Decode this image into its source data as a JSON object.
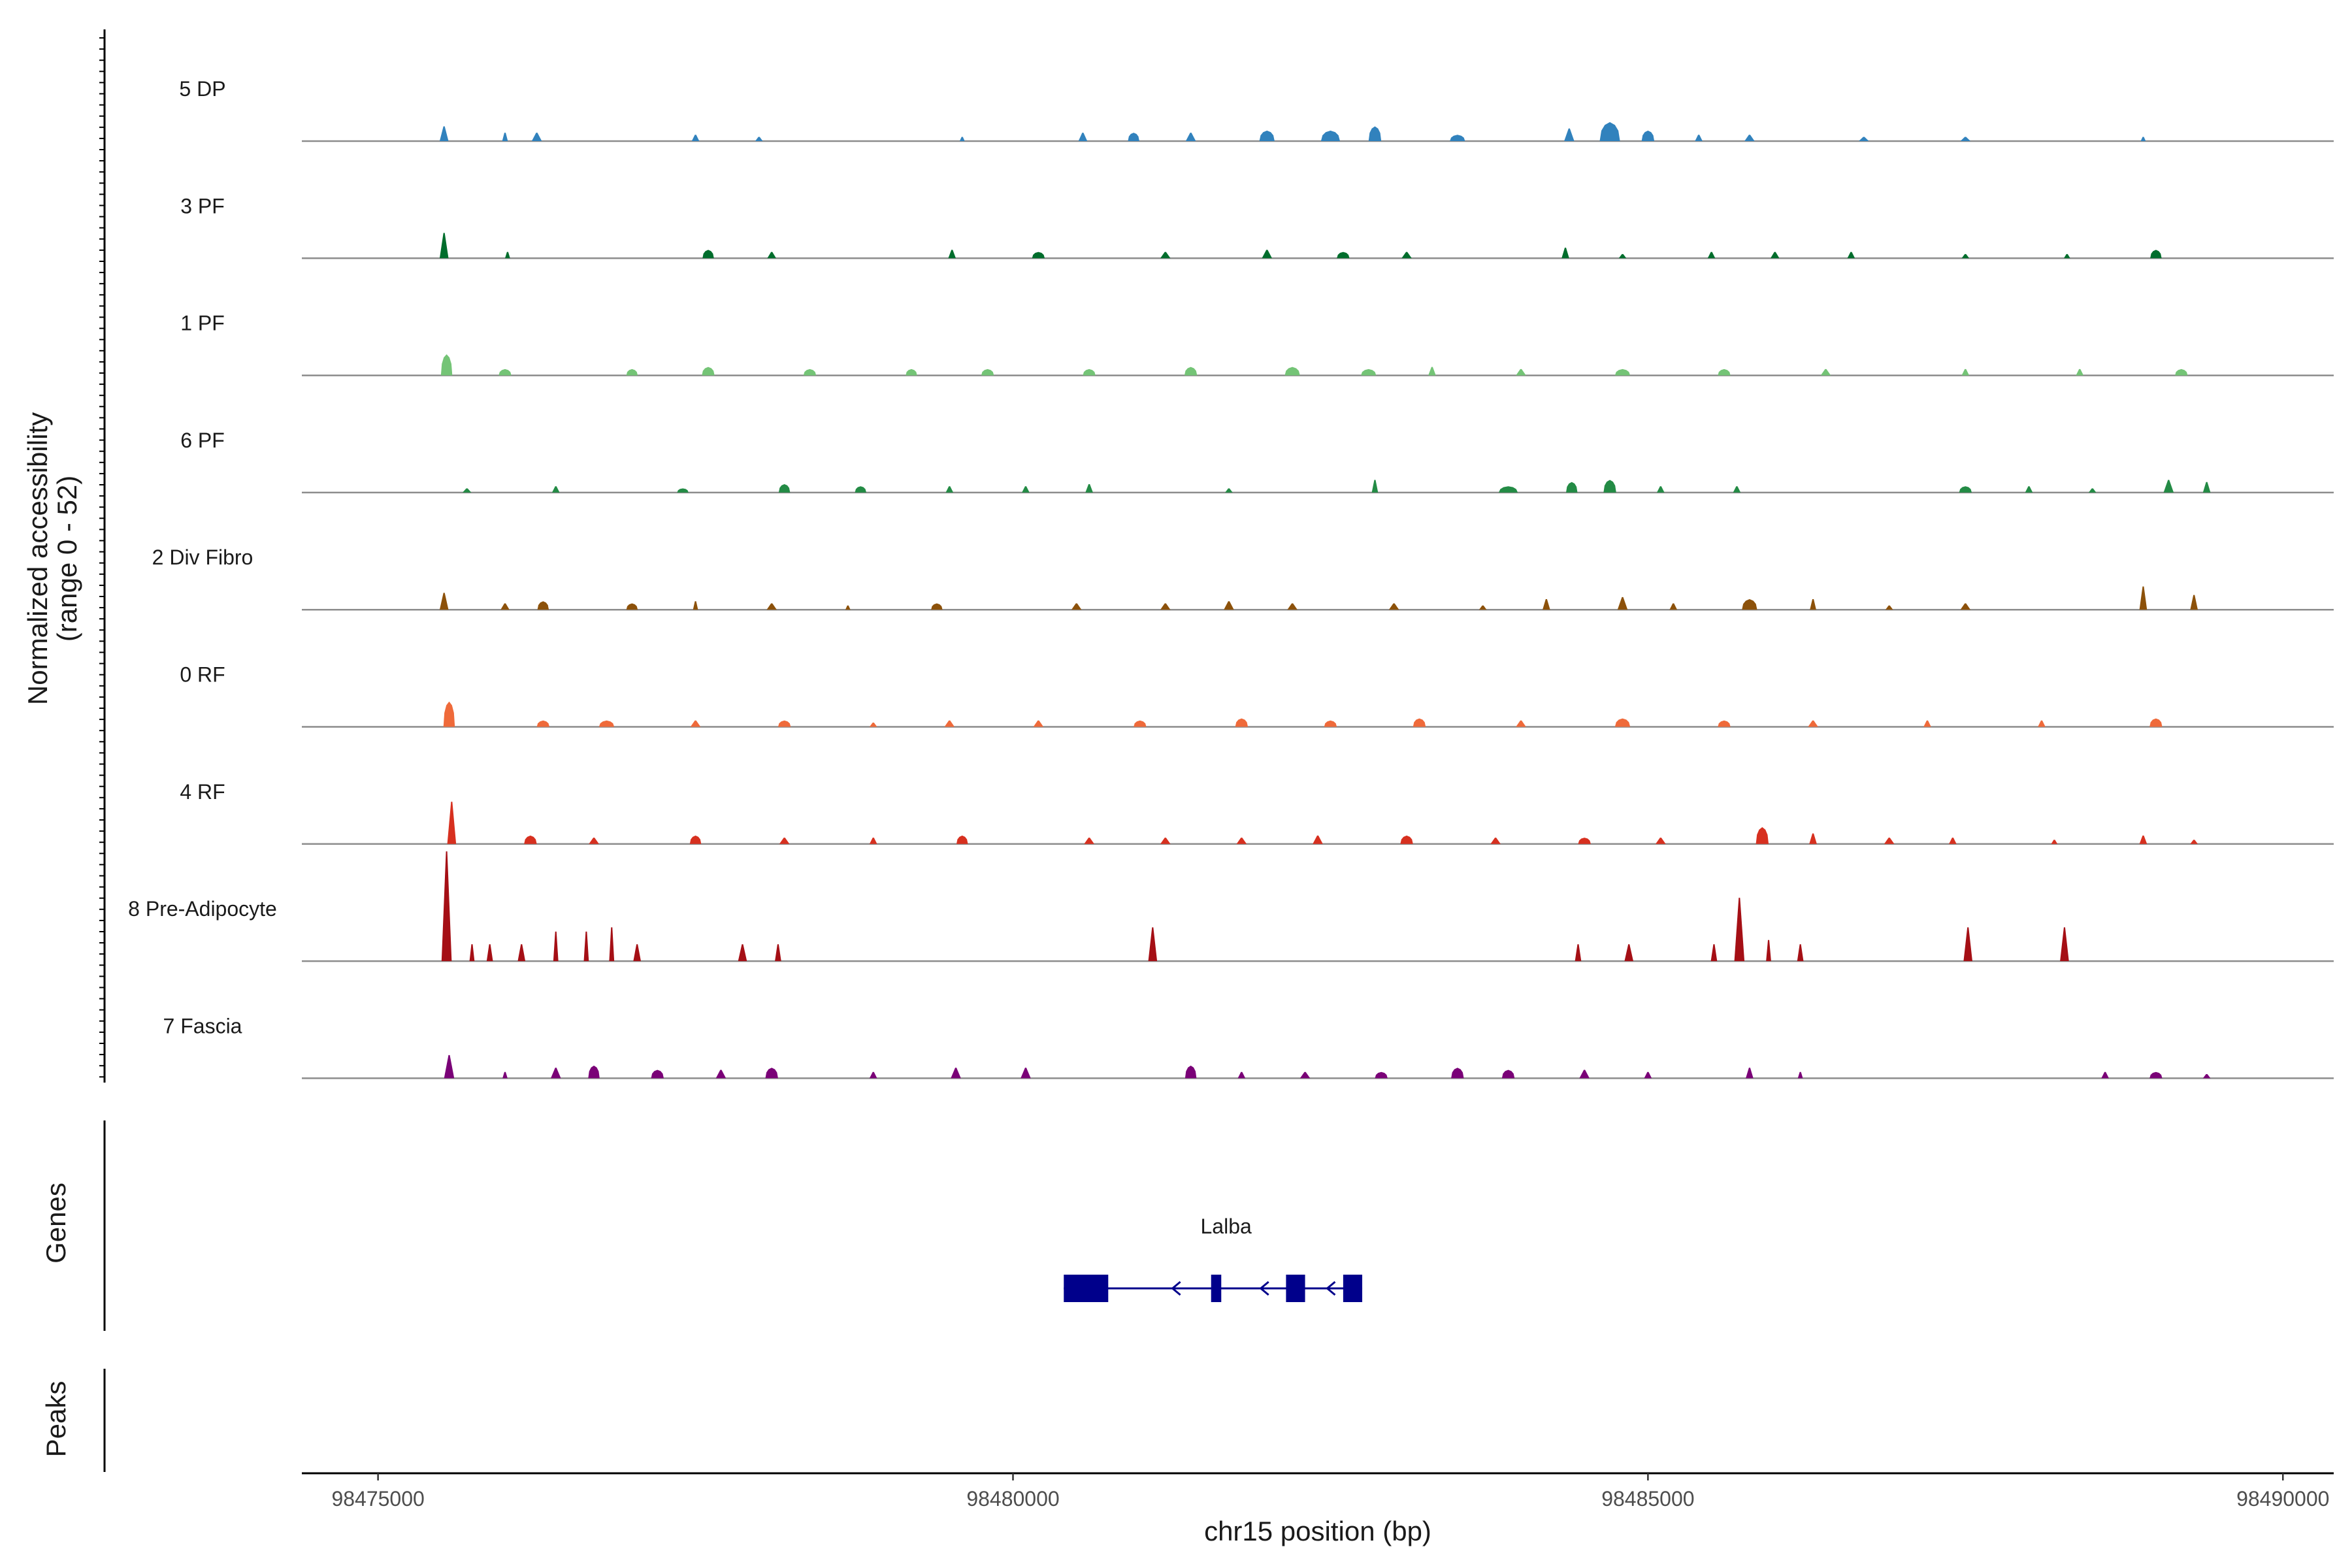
{
  "chart_data": {
    "type": "area",
    "title": "",
    "ylabel": "Normalized accessibility",
    "ylabel_range": "(range 0 - 52)",
    "ylim": [
      0,
      52
    ],
    "xlabel": "chr15 position (bp)",
    "xlim": [
      98474400,
      98490400
    ],
    "x_ticks": [
      98475000,
      98480000,
      98485000,
      98490000
    ],
    "x_tick_labels": [
      "98475000",
      "98480000",
      "98485000",
      "98490000"
    ],
    "side_labels": {
      "genes": "Genes",
      "peaks": "Peaks"
    },
    "tracks": [
      {
        "name": "5 DP",
        "color": "#3182bd",
        "peaks": [
          [
            98475520,
            70,
            7
          ],
          [
            98476000,
            45,
            4
          ],
          [
            98476250,
            80,
            4
          ],
          [
            98477500,
            60,
            3
          ],
          [
            98478000,
            60,
            2
          ],
          [
            98479600,
            40,
            2
          ],
          [
            98480550,
            70,
            4
          ],
          [
            98480950,
            90,
            4
          ],
          [
            98481400,
            80,
            4
          ],
          [
            98482000,
            120,
            5
          ],
          [
            98482500,
            150,
            5
          ],
          [
            98482850,
            100,
            7
          ],
          [
            98483500,
            120,
            3
          ],
          [
            98484380,
            80,
            6
          ],
          [
            98484700,
            160,
            9
          ],
          [
            98485000,
            100,
            5
          ],
          [
            98485400,
            60,
            3
          ],
          [
            98485800,
            80,
            3
          ],
          [
            98486700,
            80,
            2
          ],
          [
            98487500,
            80,
            2
          ],
          [
            98488900,
            40,
            2
          ]
        ]
      },
      {
        "name": "3 PF",
        "color": "#006d2c",
        "peaks": [
          [
            98475520,
            70,
            12
          ],
          [
            98476020,
            40,
            3
          ],
          [
            98477600,
            90,
            4
          ],
          [
            98478100,
            70,
            3
          ],
          [
            98479520,
            60,
            4
          ],
          [
            98480200,
            100,
            3
          ],
          [
            98481200,
            80,
            3
          ],
          [
            98482000,
            80,
            4
          ],
          [
            98482600,
            100,
            3
          ],
          [
            98483100,
            80,
            3
          ],
          [
            98484350,
            60,
            5
          ],
          [
            98484800,
            60,
            2
          ],
          [
            98485500,
            60,
            3
          ],
          [
            98486000,
            70,
            3
          ],
          [
            98486600,
            60,
            3
          ],
          [
            98487500,
            60,
            2
          ],
          [
            98488300,
            50,
            2
          ],
          [
            98489000,
            90,
            4
          ]
        ]
      },
      {
        "name": "1 PF",
        "color": "#74c476",
        "peaks": [
          [
            98475540,
            90,
            10
          ],
          [
            98476000,
            100,
            3
          ],
          [
            98477000,
            90,
            3
          ],
          [
            98477600,
            100,
            4
          ],
          [
            98478400,
            100,
            3
          ],
          [
            98479200,
            90,
            3
          ],
          [
            98479800,
            100,
            3
          ],
          [
            98480600,
            100,
            3
          ],
          [
            98481400,
            100,
            4
          ],
          [
            98482200,
            120,
            4
          ],
          [
            98482800,
            120,
            3
          ],
          [
            98483300,
            60,
            4
          ],
          [
            98484000,
            80,
            3
          ],
          [
            98484800,
            120,
            3
          ],
          [
            98485600,
            100,
            3
          ],
          [
            98486400,
            80,
            3
          ],
          [
            98487500,
            60,
            3
          ],
          [
            98488400,
            60,
            3
          ],
          [
            98489200,
            100,
            3
          ]
        ]
      },
      {
        "name": "6 PF",
        "color": "#238b45",
        "peaks": [
          [
            98475700,
            70,
            2
          ],
          [
            98476400,
            60,
            3
          ],
          [
            98477400,
            90,
            2
          ],
          [
            98478200,
            90,
            4
          ],
          [
            98478800,
            90,
            3
          ],
          [
            98479500,
            60,
            3
          ],
          [
            98480100,
            60,
            3
          ],
          [
            98480600,
            60,
            4
          ],
          [
            98481700,
            60,
            2
          ],
          [
            98482850,
            50,
            6
          ],
          [
            98483900,
            150,
            3
          ],
          [
            98484400,
            90,
            5
          ],
          [
            98484700,
            100,
            6
          ],
          [
            98485100,
            60,
            3
          ],
          [
            98485700,
            60,
            3
          ],
          [
            98487500,
            100,
            3
          ],
          [
            98488000,
            60,
            3
          ],
          [
            98488500,
            60,
            2
          ],
          [
            98489100,
            80,
            6
          ],
          [
            98489400,
            60,
            5
          ]
        ]
      },
      {
        "name": "2 Div Fibro",
        "color": "#8c510a",
        "peaks": [
          [
            98475520,
            70,
            8
          ],
          [
            98476000,
            70,
            3
          ],
          [
            98476300,
            90,
            4
          ],
          [
            98477000,
            90,
            3
          ],
          [
            98477500,
            40,
            4
          ],
          [
            98478100,
            80,
            3
          ],
          [
            98478700,
            40,
            2
          ],
          [
            98479400,
            90,
            3
          ],
          [
            98480500,
            80,
            3
          ],
          [
            98481200,
            80,
            3
          ],
          [
            98481700,
            80,
            4
          ],
          [
            98482200,
            80,
            3
          ],
          [
            98483000,
            80,
            3
          ],
          [
            98483700,
            60,
            2
          ],
          [
            98484200,
            60,
            5
          ],
          [
            98484800,
            80,
            6
          ],
          [
            98485200,
            60,
            3
          ],
          [
            98485800,
            120,
            5
          ],
          [
            98486300,
            50,
            5
          ],
          [
            98486900,
            60,
            2
          ],
          [
            98487500,
            80,
            3
          ],
          [
            98488900,
            60,
            11
          ],
          [
            98489300,
            60,
            7
          ]
        ]
      },
      {
        "name": "0 RF",
        "color": "#ef6a3a",
        "peaks": [
          [
            98475560,
            90,
            12
          ],
          [
            98476300,
            100,
            3
          ],
          [
            98476800,
            120,
            3
          ],
          [
            98477500,
            80,
            3
          ],
          [
            98478200,
            100,
            3
          ],
          [
            98478900,
            60,
            2
          ],
          [
            98479500,
            80,
            3
          ],
          [
            98480200,
            80,
            3
          ],
          [
            98481000,
            100,
            3
          ],
          [
            98481800,
            100,
            4
          ],
          [
            98482500,
            100,
            3
          ],
          [
            98483200,
            100,
            4
          ],
          [
            98484000,
            80,
            3
          ],
          [
            98484800,
            120,
            4
          ],
          [
            98485600,
            100,
            3
          ],
          [
            98486300,
            80,
            3
          ],
          [
            98487200,
            60,
            3
          ],
          [
            98488100,
            60,
            3
          ],
          [
            98489000,
            100,
            4
          ]
        ]
      },
      {
        "name": "4 RF",
        "color": "#d7301f",
        "peaks": [
          [
            98475580,
            70,
            20
          ],
          [
            98476200,
            100,
            4
          ],
          [
            98476700,
            80,
            3
          ],
          [
            98477500,
            90,
            4
          ],
          [
            98478200,
            80,
            3
          ],
          [
            98478900,
            60,
            3
          ],
          [
            98479600,
            90,
            4
          ],
          [
            98480600,
            80,
            3
          ],
          [
            98481200,
            80,
            3
          ],
          [
            98481800,
            80,
            3
          ],
          [
            98482400,
            80,
            4
          ],
          [
            98483100,
            100,
            4
          ],
          [
            98483800,
            80,
            3
          ],
          [
            98484500,
            100,
            3
          ],
          [
            98485100,
            80,
            3
          ],
          [
            98485900,
            100,
            8
          ],
          [
            98486300,
            60,
            5
          ],
          [
            98486900,
            80,
            3
          ],
          [
            98487400,
            60,
            3
          ],
          [
            98488200,
            50,
            2
          ],
          [
            98488900,
            60,
            4
          ],
          [
            98489300,
            60,
            2
          ]
        ]
      },
      {
        "name": "8 Pre-Adipocyte",
        "color": "#a50f15",
        "peaks": [
          [
            98475540,
            80,
            52
          ],
          [
            98475740,
            40,
            8
          ],
          [
            98475880,
            50,
            8
          ],
          [
            98476130,
            60,
            8
          ],
          [
            98476400,
            40,
            14
          ],
          [
            98476640,
            40,
            14
          ],
          [
            98476840,
            40,
            16
          ],
          [
            98477040,
            60,
            8
          ],
          [
            98477870,
            70,
            8
          ],
          [
            98478150,
            50,
            8
          ],
          [
            98481100,
            70,
            16
          ],
          [
            98484450,
            50,
            8
          ],
          [
            98484850,
            70,
            8
          ],
          [
            98485520,
            50,
            8
          ],
          [
            98485720,
            80,
            30
          ],
          [
            98485950,
            40,
            10
          ],
          [
            98486200,
            50,
            8
          ],
          [
            98487520,
            70,
            16
          ],
          [
            98488280,
            70,
            16
          ]
        ]
      },
      {
        "name": "7 Fascia",
        "color": "#7a0177",
        "peaks": [
          [
            98475560,
            80,
            11
          ],
          [
            98476000,
            40,
            3
          ],
          [
            98476400,
            80,
            5
          ],
          [
            98476700,
            90,
            6
          ],
          [
            98477200,
            100,
            4
          ],
          [
            98477700,
            80,
            4
          ],
          [
            98478100,
            100,
            5
          ],
          [
            98478900,
            60,
            3
          ],
          [
            98479550,
            80,
            5
          ],
          [
            98480100,
            80,
            5
          ],
          [
            98481400,
            90,
            6
          ],
          [
            98481800,
            60,
            3
          ],
          [
            98482300,
            80,
            3
          ],
          [
            98482900,
            100,
            3
          ],
          [
            98483500,
            100,
            5
          ],
          [
            98483900,
            100,
            4
          ],
          [
            98484500,
            80,
            4
          ],
          [
            98485000,
            60,
            3
          ],
          [
            98485800,
            60,
            5
          ],
          [
            98486200,
            40,
            3
          ],
          [
            98488600,
            60,
            3
          ],
          [
            98489000,
            100,
            3
          ],
          [
            98489400,
            60,
            2
          ]
        ]
      }
    ],
    "genes": [
      {
        "name": "Lalba",
        "strand": "-",
        "exons": [
          [
            98480400,
            98480750
          ],
          [
            98481560,
            98481640
          ],
          [
            98482150,
            98482300
          ],
          [
            98482600,
            98482750
          ]
        ]
      }
    ]
  }
}
